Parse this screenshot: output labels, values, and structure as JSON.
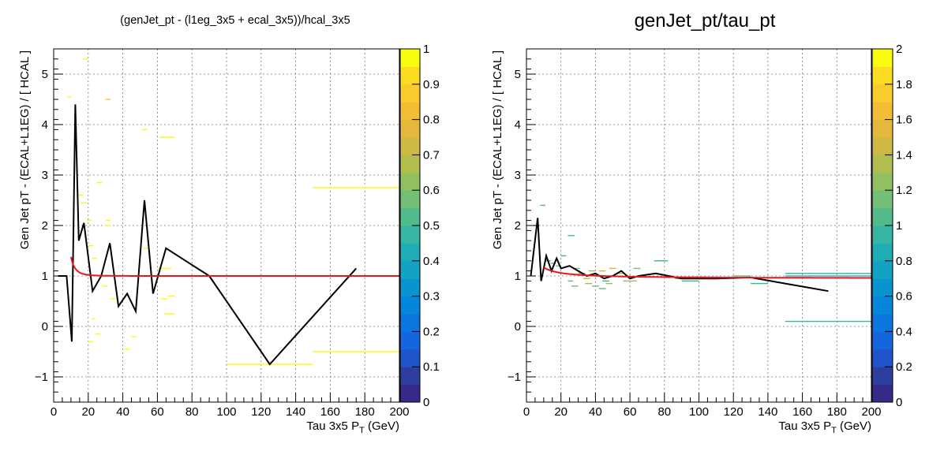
{
  "colors": {
    "fit": "#e8161b",
    "profile": "#000000",
    "grid": "#777777"
  },
  "palette": [
    "#352a87",
    "#2d3e9f",
    "#1f55c9",
    "#1466df",
    "#0b76e0",
    "#0686d9",
    "#0a94cf",
    "#13a2c4",
    "#1eadb4",
    "#35b5a2",
    "#52bb8c",
    "#72bf75",
    "#92bf5f",
    "#b1bd4c",
    "#cdb944",
    "#e3b83d",
    "#f3bd35",
    "#f9cb2c",
    "#fbdc23",
    "#f9fb0e"
  ],
  "chart_data": [
    {
      "type": "heatmap",
      "title": "(genJet_pt - (l1eg_3x5 + ecal_3x5))/hcal_3x5",
      "xlabel": "Tau 3x5 P_T (GeV)",
      "ylabel": "Gen Jet pT - (ECAL+L1EG) / [ HCAL ]",
      "xlim": [
        0,
        200
      ],
      "ylim": [
        -1.5,
        5.5
      ],
      "xticks": [
        0,
        20,
        40,
        60,
        80,
        100,
        120,
        140,
        160,
        180,
        200
      ],
      "yticks": [
        -1,
        0,
        1,
        2,
        3,
        4,
        5
      ],
      "grid": true,
      "colorbar": {
        "min": 0,
        "max": 1,
        "ticks": [
          0,
          0.1,
          0.2,
          0.3,
          0.4,
          0.5,
          0.6,
          0.7,
          0.8,
          0.9,
          1
        ]
      },
      "cells": [
        {
          "x": [
            8,
            10
          ],
          "y": 4.55,
          "z": 1.0
        },
        {
          "x": [
            14,
            17
          ],
          "y": 2.6,
          "z": 1.0
        },
        {
          "x": [
            16,
            19
          ],
          "y": 2.45,
          "z": 1.0
        },
        {
          "x": [
            17,
            20
          ],
          "y": 5.3,
          "z": 1.0
        },
        {
          "x": [
            19,
            22
          ],
          "y": 2.1,
          "z": 1.0
        },
        {
          "x": [
            20,
            23
          ],
          "y": 1.6,
          "z": 1.0
        },
        {
          "x": [
            22,
            25
          ],
          "y": 1.35,
          "z": 1.0
        },
        {
          "x": [
            25,
            28
          ],
          "y": 2.85,
          "z": 1.0
        },
        {
          "x": [
            28,
            31
          ],
          "y": 0.8,
          "z": 1.0
        },
        {
          "x": [
            30,
            33
          ],
          "y": 2.1,
          "z": 1.0
        },
        {
          "x": [
            30,
            33
          ],
          "y": 2.0,
          "z": 1.0
        },
        {
          "x": [
            30,
            33
          ],
          "y": 4.5,
          "z": 0.9
        },
        {
          "x": [
            33,
            36
          ],
          "y": 0.55,
          "z": 1.0
        },
        {
          "x": [
            41,
            44
          ],
          "y": -0.45,
          "z": 1.0
        },
        {
          "x": [
            45,
            48
          ],
          "y": -0.2,
          "z": 1.0
        },
        {
          "x": [
            51,
            54
          ],
          "y": 3.9,
          "z": 1.0
        },
        {
          "x": [
            52,
            55
          ],
          "y": 1.55,
          "z": 1.0
        },
        {
          "x": [
            62,
            66
          ],
          "y": 0.55,
          "z": 1.0
        },
        {
          "x": [
            64,
            70
          ],
          "y": 0.25,
          "z": 1.0
        },
        {
          "x": [
            66,
            70
          ],
          "y": 0.6,
          "z": 1.0
        },
        {
          "x": [
            61,
            70
          ],
          "y": 3.75,
          "z": 1.0
        },
        {
          "x": [
            60,
            68
          ],
          "y": 1.15,
          "z": 1.0
        },
        {
          "x": [
            100,
            150
          ],
          "y": -0.75,
          "z": 1.0
        },
        {
          "x": [
            150,
            200
          ],
          "y": -0.5,
          "z": 1.0
        },
        {
          "x": [
            150,
            200
          ],
          "y": 2.75,
          "z": 1.0
        },
        {
          "x": [
            20,
            23
          ],
          "y": -0.3,
          "z": 1.0
        },
        {
          "x": [
            22,
            24
          ],
          "y": 0.15,
          "z": 1.0
        },
        {
          "x": [
            24,
            27
          ],
          "y": -0.15,
          "z": 1.0
        }
      ],
      "profile": {
        "name": "",
        "x": [
          2.5,
          7.5,
          10.5,
          12.5,
          14.5,
          17.5,
          22.5,
          27.5,
          32.5,
          37.5,
          42.5,
          47.5,
          52.5,
          57.5,
          65,
          90,
          125,
          175
        ],
        "y": [
          1.0,
          1.0,
          -0.3,
          4.4,
          1.7,
          2.05,
          0.7,
          1.0,
          1.65,
          0.4,
          0.65,
          0.3,
          2.5,
          0.65,
          1.55,
          1.0,
          -0.75,
          1.15
        ]
      },
      "fit": {
        "name": "",
        "a": 1.0,
        "b": 6000,
        "p": 4.2,
        "xmin": 10,
        "xmax": 200
      }
    },
    {
      "type": "heatmap",
      "title": "genJet_pt/tau_pt",
      "xlabel": "Tau 3x5 P_T (GeV)",
      "ylabel": "Gen Jet pT - (ECAL+L1EG) / [ HCAL ]",
      "xlim": [
        0,
        200
      ],
      "ylim": [
        -1.5,
        5.5
      ],
      "xticks": [
        0,
        20,
        40,
        60,
        80,
        100,
        120,
        140,
        160,
        180,
        200
      ],
      "yticks": [
        -1,
        0,
        1,
        2,
        3,
        4,
        5
      ],
      "grid": true,
      "colorbar": {
        "min": 0,
        "max": 2,
        "ticks": [
          0,
          0.2,
          0.4,
          0.6,
          0.8,
          1,
          1.2,
          1.4,
          1.6,
          1.8,
          2
        ]
      },
      "cells": [
        {
          "x": [
            4,
            8
          ],
          "y": 2.0,
          "z": 1.2
        },
        {
          "x": [
            8,
            11
          ],
          "y": 2.4,
          "z": 1.1
        },
        {
          "x": [
            11,
            14
          ],
          "y": 1.3,
          "z": 1.0
        },
        {
          "x": [
            14,
            17
          ],
          "y": 1.25,
          "z": 1.1
        },
        {
          "x": [
            17,
            20
          ],
          "y": 1.2,
          "z": 1.2
        },
        {
          "x": [
            20,
            23
          ],
          "y": 1.4,
          "z": 1.0
        },
        {
          "x": [
            24,
            28
          ],
          "y": 1.8,
          "z": 1.1
        },
        {
          "x": [
            27,
            31
          ],
          "y": 1.15,
          "z": 1.2
        },
        {
          "x": [
            30,
            34
          ],
          "y": 1.05,
          "z": 1.3
        },
        {
          "x": [
            33,
            37
          ],
          "y": 0.95,
          "z": 1.4
        },
        {
          "x": [
            36,
            40
          ],
          "y": 1.1,
          "z": 1.3
        },
        {
          "x": [
            40,
            44
          ],
          "y": 1.0,
          "z": 1.2
        },
        {
          "x": [
            42,
            46
          ],
          "y": 1.1,
          "z": 1.5
        },
        {
          "x": [
            44,
            48
          ],
          "y": 0.9,
          "z": 1.0
        },
        {
          "x": [
            48,
            52
          ],
          "y": 1.15,
          "z": 1.5
        },
        {
          "x": [
            52,
            56
          ],
          "y": 1.05,
          "z": 1.4
        },
        {
          "x": [
            56,
            60
          ],
          "y": 0.9,
          "z": 1.3
        },
        {
          "x": [
            62,
            66
          ],
          "y": 1.15,
          "z": 1.2
        },
        {
          "x": [
            24,
            27
          ],
          "y": 0.9,
          "z": 1.1
        },
        {
          "x": [
            26,
            30
          ],
          "y": 0.8,
          "z": 1.2
        },
        {
          "x": [
            34,
            38
          ],
          "y": 0.85,
          "z": 1.3
        },
        {
          "x": [
            38,
            42
          ],
          "y": 0.8,
          "z": 1.2
        },
        {
          "x": [
            42,
            46
          ],
          "y": 0.75,
          "z": 1.1
        },
        {
          "x": [
            46,
            50
          ],
          "y": 0.85,
          "z": 1.3
        },
        {
          "x": [
            60,
            64
          ],
          "y": 0.9,
          "z": 1.3
        },
        {
          "x": [
            74,
            82
          ],
          "y": 1.3,
          "z": 1.0
        },
        {
          "x": [
            86,
            92
          ],
          "y": 0.95,
          "z": 1.1
        },
        {
          "x": [
            90,
            100
          ],
          "y": 0.9,
          "z": 1.0
        },
        {
          "x": [
            100,
            110
          ],
          "y": 0.95,
          "z": 1.0
        },
        {
          "x": [
            120,
            130
          ],
          "y": 1.0,
          "z": 1.1
        },
        {
          "x": [
            130,
            140
          ],
          "y": 0.85,
          "z": 1.0
        },
        {
          "x": [
            150,
            200
          ],
          "y": 1.05,
          "z": 1.0
        },
        {
          "x": [
            150,
            200
          ],
          "y": 1.0,
          "z": 0.9
        },
        {
          "x": [
            150,
            200
          ],
          "y": 0.1,
          "z": 0.95
        }
      ],
      "profile": {
        "name": "",
        "x": [
          2.5,
          6.5,
          8.5,
          11.5,
          14.5,
          17.5,
          20,
          25,
          30,
          35,
          40,
          45,
          50,
          55,
          60,
          65,
          75,
          90,
          110,
          130,
          150,
          175
        ],
        "y": [
          1.0,
          2.15,
          0.9,
          1.4,
          1.1,
          1.35,
          1.15,
          1.2,
          1.1,
          1.0,
          1.05,
          0.95,
          1.0,
          1.1,
          0.95,
          1.0,
          1.05,
          0.95,
          0.95,
          0.97,
          0.85,
          0.7
        ]
      },
      "fit": {
        "name": "",
        "a": 0.95,
        "b": 2.2,
        "p": 1.0,
        "xmin": 10,
        "xmax": 200
      }
    }
  ]
}
